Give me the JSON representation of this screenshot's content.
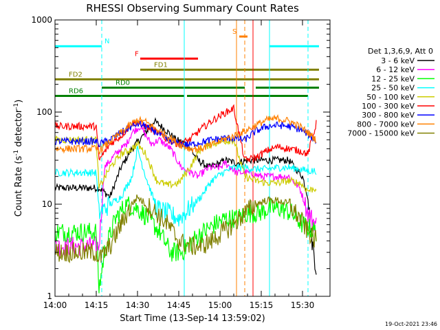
{
  "chart_data": {
    "type": "line",
    "title": "RHESSI Observing Summary Count Rates",
    "xlabel": "Start Time (13-Sep-14 13:59:02)",
    "ylabel": "Count Rate (s",
    "ylabel_sup": "-1",
    "ylabel_tail": " detector",
    "ylabel_tail_sup": "-1",
    "ylabel_close": ")",
    "ylim": [
      1,
      1000
    ],
    "yscale": "log",
    "xlim_minutes": [
      0,
      100
    ],
    "x_ticks": [
      {
        "label": "14:00",
        "t": 0
      },
      {
        "label": "14:15",
        "t": 15
      },
      {
        "label": "14:30",
        "t": 30
      },
      {
        "label": "14:45",
        "t": 45
      },
      {
        "label": "15:00",
        "t": 60
      },
      {
        "label": "15:15",
        "t": 75
      },
      {
        "label": "15:30",
        "t": 90
      }
    ],
    "y_ticks": [
      {
        "label": "1",
        "v": 1
      },
      {
        "label": "10",
        "v": 10
      },
      {
        "label": "100",
        "v": 100
      },
      {
        "label": "1000",
        "v": 1000
      }
    ],
    "legend": {
      "header": "Det 1,3,6,9, Att 0",
      "placement": "right"
    },
    "series": [
      {
        "name": "3 - 6 keV",
        "color": "#000000",
        "points": [
          [
            0,
            15
          ],
          [
            15,
            15
          ],
          [
            16,
            15
          ],
          [
            20,
            12
          ],
          [
            24,
            25
          ],
          [
            28,
            40
          ],
          [
            33,
            60
          ],
          [
            36,
            80
          ],
          [
            40,
            65
          ],
          [
            44,
            50
          ],
          [
            48,
            45
          ],
          [
            52,
            30
          ],
          [
            56,
            25
          ],
          [
            60,
            28
          ],
          [
            62,
            30
          ],
          [
            66,
            28
          ],
          [
            70,
            30
          ],
          [
            74,
            30
          ],
          [
            78,
            30
          ],
          [
            85,
            30
          ],
          [
            90,
            20
          ],
          [
            92,
            12
          ],
          [
            93,
            5
          ],
          [
            95,
            2
          ]
        ]
      },
      {
        "name": "6 - 12 keV",
        "color": "#ff00ff",
        "points": [
          [
            0,
            3.5
          ],
          [
            15,
            3.5
          ],
          [
            16,
            3.5
          ],
          [
            18,
            25
          ],
          [
            22,
            35
          ],
          [
            26,
            45
          ],
          [
            28,
            60
          ],
          [
            31,
            70
          ],
          [
            35,
            45
          ],
          [
            38,
            50
          ],
          [
            42,
            40
          ],
          [
            46,
            25
          ],
          [
            52,
            20
          ],
          [
            56,
            25
          ],
          [
            60,
            25
          ],
          [
            62,
            28
          ],
          [
            66,
            22
          ],
          [
            70,
            22
          ],
          [
            75,
            20
          ],
          [
            80,
            20
          ],
          [
            85,
            20
          ],
          [
            89,
            15
          ],
          [
            92,
            8
          ],
          [
            95,
            6
          ]
        ]
      },
      {
        "name": "12 - 25 keV",
        "color": "#00ff00",
        "points": [
          [
            0,
            5
          ],
          [
            15,
            5
          ],
          [
            16,
            1.2
          ],
          [
            18,
            3
          ],
          [
            22,
            7
          ],
          [
            26,
            10
          ],
          [
            30,
            9
          ],
          [
            34,
            7
          ],
          [
            38,
            5
          ],
          [
            42,
            3
          ],
          [
            46,
            3
          ],
          [
            50,
            4
          ],
          [
            54,
            5
          ],
          [
            58,
            6
          ],
          [
            62,
            7
          ],
          [
            66,
            7
          ],
          [
            70,
            8
          ],
          [
            74,
            8
          ],
          [
            78,
            9
          ],
          [
            82,
            9
          ],
          [
            86,
            8
          ],
          [
            90,
            6
          ],
          [
            95,
            5
          ]
        ]
      },
      {
        "name": "25 - 50 keV",
        "color": "#00ffff",
        "points": [
          [
            0,
            22
          ],
          [
            15,
            22
          ],
          [
            16,
            8
          ],
          [
            20,
            10
          ],
          [
            24,
            12
          ],
          [
            28,
            20
          ],
          [
            30,
            40
          ],
          [
            33,
            20
          ],
          [
            37,
            9
          ],
          [
            41,
            8
          ],
          [
            45,
            7
          ],
          [
            49,
            9
          ],
          [
            53,
            12
          ],
          [
            57,
            18
          ],
          [
            61,
            22
          ],
          [
            65,
            25
          ],
          [
            69,
            25
          ],
          [
            73,
            24
          ],
          [
            77,
            24
          ],
          [
            81,
            25
          ],
          [
            85,
            25
          ],
          [
            89,
            24
          ],
          [
            92,
            23
          ],
          [
            95,
            23
          ]
        ]
      },
      {
        "name": "50 - 100 keV",
        "color": "#cccc00",
        "points": [
          [
            0,
            50
          ],
          [
            15,
            50
          ],
          [
            16,
            15
          ],
          [
            20,
            25
          ],
          [
            24,
            35
          ],
          [
            28,
            40
          ],
          [
            30,
            45
          ],
          [
            33,
            35
          ],
          [
            37,
            18
          ],
          [
            41,
            16
          ],
          [
            45,
            17
          ],
          [
            49,
            25
          ],
          [
            53,
            40
          ],
          [
            57,
            45
          ],
          [
            61,
            48
          ],
          [
            65,
            50
          ],
          [
            69,
            20
          ],
          [
            73,
            18
          ],
          [
            77,
            17
          ],
          [
            81,
            17
          ],
          [
            85,
            18
          ],
          [
            89,
            17
          ],
          [
            92,
            14
          ],
          [
            95,
            15
          ]
        ]
      },
      {
        "name": "100 - 300 keV",
        "color": "#ff0000",
        "points": [
          [
            0,
            70
          ],
          [
            15,
            70
          ],
          [
            16,
            30
          ],
          [
            20,
            45
          ],
          [
            24,
            55
          ],
          [
            28,
            75
          ],
          [
            30,
            78
          ],
          [
            33,
            70
          ],
          [
            37,
            60
          ],
          [
            41,
            50
          ],
          [
            45,
            45
          ],
          [
            49,
            50
          ],
          [
            53,
            65
          ],
          [
            57,
            80
          ],
          [
            61,
            95
          ],
          [
            65,
            110
          ],
          [
            69,
            30
          ],
          [
            73,
            32
          ],
          [
            77,
            38
          ],
          [
            81,
            42
          ],
          [
            85,
            40
          ],
          [
            89,
            38
          ],
          [
            92,
            35
          ],
          [
            95,
            75
          ]
        ]
      },
      {
        "name": "300 - 800 keV",
        "color": "#0000ff",
        "points": [
          [
            0,
            48
          ],
          [
            15,
            48
          ],
          [
            16,
            45
          ],
          [
            20,
            50
          ],
          [
            24,
            60
          ],
          [
            28,
            70
          ],
          [
            30,
            75
          ],
          [
            33,
            70
          ],
          [
            37,
            60
          ],
          [
            41,
            50
          ],
          [
            45,
            45
          ],
          [
            49,
            44
          ],
          [
            53,
            47
          ],
          [
            57,
            50
          ],
          [
            61,
            52
          ],
          [
            65,
            52
          ],
          [
            69,
            50
          ],
          [
            73,
            62
          ],
          [
            77,
            70
          ],
          [
            81,
            72
          ],
          [
            85,
            70
          ],
          [
            89,
            65
          ],
          [
            92,
            58
          ],
          [
            95,
            48
          ]
        ]
      },
      {
        "name": "800 - 7000 keV",
        "color": "#ff8000",
        "points": [
          [
            0,
            40
          ],
          [
            15,
            40
          ],
          [
            16,
            38
          ],
          [
            20,
            48
          ],
          [
            24,
            60
          ],
          [
            28,
            75
          ],
          [
            30,
            82
          ],
          [
            33,
            78
          ],
          [
            37,
            65
          ],
          [
            41,
            55
          ],
          [
            45,
            45
          ],
          [
            49,
            40
          ],
          [
            53,
            40
          ],
          [
            57,
            44
          ],
          [
            61,
            50
          ],
          [
            65,
            55
          ],
          [
            69,
            62
          ],
          [
            73,
            72
          ],
          [
            77,
            82
          ],
          [
            81,
            85
          ],
          [
            85,
            80
          ],
          [
            89,
            70
          ],
          [
            92,
            60
          ],
          [
            95,
            50
          ]
        ]
      },
      {
        "name": "7000 - 15000 keV",
        "color": "#808000",
        "points": [
          [
            0,
            3
          ],
          [
            15,
            3
          ],
          [
            16,
            2.5
          ],
          [
            20,
            3.5
          ],
          [
            24,
            6
          ],
          [
            28,
            10
          ],
          [
            30,
            12
          ],
          [
            33,
            10
          ],
          [
            37,
            8
          ],
          [
            41,
            6
          ],
          [
            45,
            4
          ],
          [
            49,
            3.5
          ],
          [
            53,
            3.5
          ],
          [
            57,
            4
          ],
          [
            61,
            5
          ],
          [
            65,
            6
          ],
          [
            69,
            8
          ],
          [
            73,
            10
          ],
          [
            77,
            11
          ],
          [
            81,
            11
          ],
          [
            85,
            10
          ],
          [
            89,
            7
          ],
          [
            92,
            5
          ],
          [
            95,
            4
          ]
        ]
      }
    ],
    "flags": [
      {
        "label": "N",
        "color": "#00ffff",
        "segments": [
          [
            0,
            17
          ],
          [
            78,
            96
          ]
        ],
        "level": 0.905
      },
      {
        "label": "S",
        "color": "#ff8000",
        "segments": [
          [
            67,
            70
          ]
        ],
        "level": 0.94
      },
      {
        "label": "F",
        "color": "#ff0000",
        "segments": [
          [
            31,
            52
          ]
        ],
        "level": 0.86
      },
      {
        "label": "FD1",
        "color": "#808000",
        "segments": [
          [
            31,
            96
          ]
        ],
        "level": 0.82
      },
      {
        "label": "FD2",
        "color": "#808000",
        "segments": [
          [
            0,
            96
          ]
        ],
        "level": 0.785
      },
      {
        "label": "RD0",
        "color": "#008000",
        "segments": [
          [
            17,
            69
          ],
          [
            73,
            96
          ]
        ],
        "level": 0.755
      },
      {
        "label": "RD6",
        "color": "#008000",
        "segments": [
          [
            0,
            47
          ],
          [
            48,
            92
          ]
        ],
        "level": 0.725
      }
    ],
    "vlines": [
      {
        "t": 17,
        "color": "#00ffff",
        "style": "dashed"
      },
      {
        "t": 47,
        "color": "#00ffff",
        "style": "solid"
      },
      {
        "t": 66,
        "color": "#ff8000",
        "style": "solid"
      },
      {
        "t": 69,
        "color": "#ff8000",
        "style": "dashed"
      },
      {
        "t": 72,
        "color": "#ff0000",
        "style": "solid"
      },
      {
        "t": 78,
        "color": "#00ffff",
        "style": "solid"
      },
      {
        "t": 92,
        "color": "#00ffff",
        "style": "dashed"
      }
    ]
  },
  "footer": {
    "stamp": "19-Oct-2021 23:46"
  }
}
